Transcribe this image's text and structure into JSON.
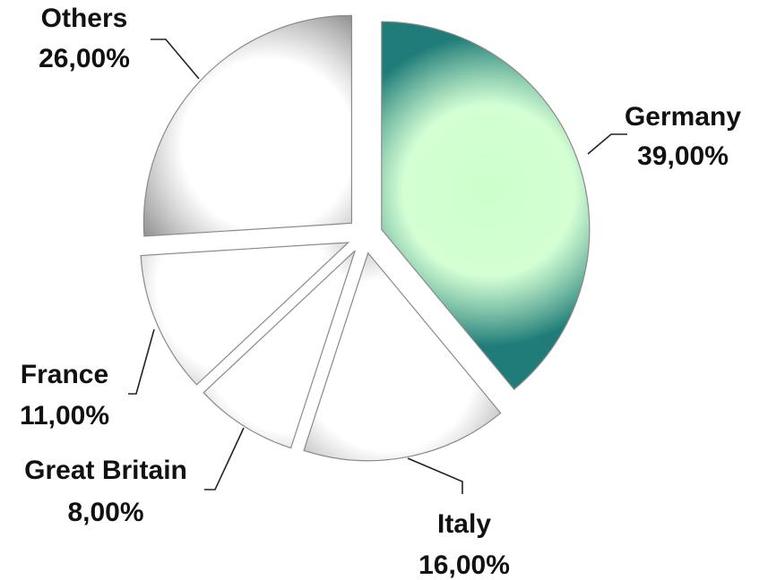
{
  "chart_data": {
    "type": "pie",
    "categories": [
      "Germany",
      "Italy",
      "Great Britain",
      "France",
      "Others"
    ],
    "values": [
      39.0,
      16.0,
      8.0,
      11.0,
      26.0
    ],
    "value_labels": [
      "39,00%",
      "16,00%",
      "8,00%",
      "11,00%",
      "26,00%"
    ],
    "exploded": true,
    "start_angle_deg": 0,
    "direction": "clockwise",
    "title": "",
    "legend": "none",
    "colors": {
      "Germany": {
        "edge": "#1f7c78",
        "center": "#ccffcc"
      },
      "Italy": {
        "edge": "#8c8c8c",
        "center": "#ffffff"
      },
      "Great Britain": {
        "edge": "#8c8c8c",
        "center": "#ffffff"
      },
      "France": {
        "edge": "#8c8c8c",
        "center": "#ffffff"
      },
      "Others": {
        "edge": "#8c8c8c",
        "center": "#ffffff"
      }
    }
  }
}
